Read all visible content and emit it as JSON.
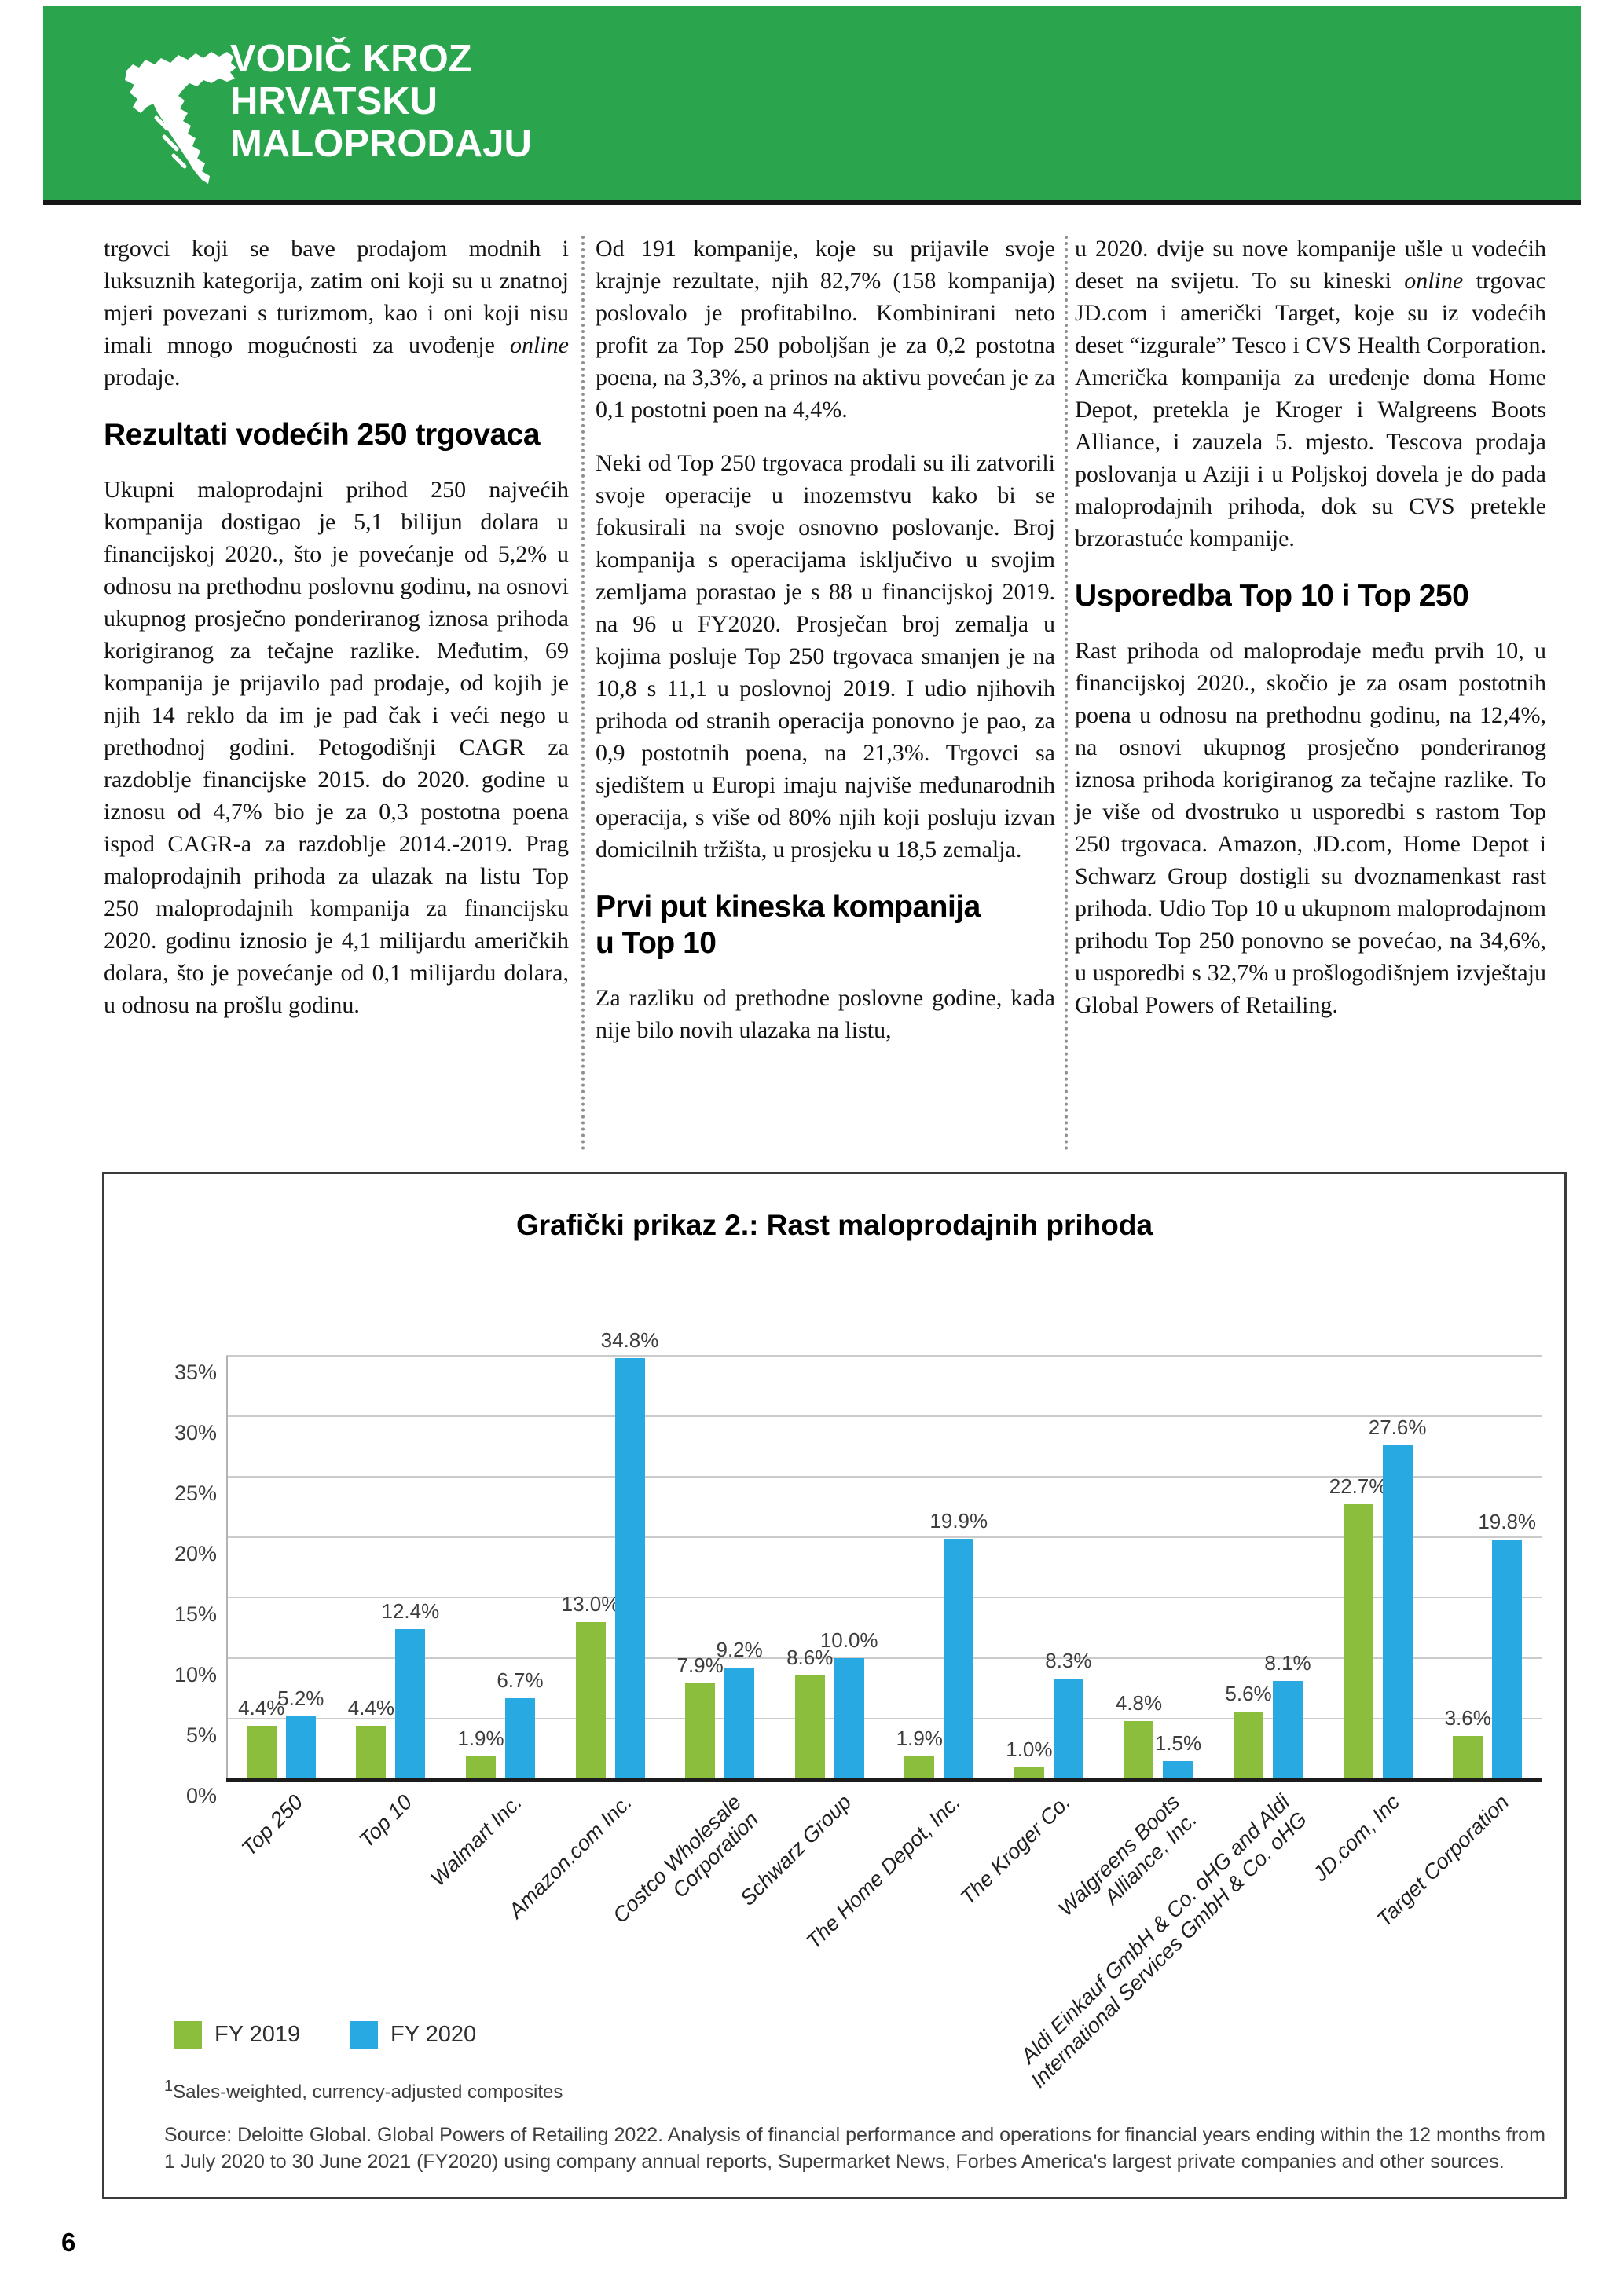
{
  "page": {
    "number": "6"
  },
  "header": {
    "title": "VODIČ KROZ\nHRVATSKU\nMALOPRODAJU",
    "bg_color": "#2aa44d"
  },
  "article": {
    "col1": {
      "p1_pre": "trgovci koji se bave prodajom modnih i luksuznih kategorija, zatim oni koji su u znatnoj mjeri povezani s turizmom, kao i oni koji nisu imali mnogo mogućnosti za uvođenje ",
      "p1_italic": "online",
      "p1_post": " prodaje.",
      "heading": "Rezultati vodećih 250 trgovaca",
      "p2": "Ukupni maloprodajni prihod 250 najvećih kompanija dostigao je 5,1 bilijun dolara u financijskoj 2020., što je povećanje od 5,2% u odnosu na prethodnu poslovnu godinu, na osnovi ukupnog prosječno ponderiranog iznosa prihoda korigiranog za tečajne razlike. Međutim, 69 kompanija je prijavilo pad prodaje, od kojih je njih 14 reklo da im je pad čak i veći nego u prethodnoj godini. Petogodišnji CAGR za razdoblje financijske 2015. do 2020. godine u iznosu od 4,7% bio je za 0,3 postotna poena ispod CAGR-a za razdoblje 2014.-2019. Prag maloprodajnih prihoda za ulazak na listu Top 250 maloprodajnih kompanija za financijsku 2020. godinu iznosio je 4,1 milijardu američkih dolara, što je povećanje od 0,1 milijardu dolara, u odnosu na prošlu godinu."
    },
    "col2": {
      "p1": "Od 191 kompanije, koje su prijavile svoje krajnje rezultate, njih 82,7% (158 kompanija) poslovalo je profitabilno. Kombinirani neto profit za Top 250 poboljšan je za 0,2 postotna poena, na 3,3%, a prinos na aktivu povećan je za 0,1 postotni poen na 4,4%.",
      "p2": "Neki od Top 250 trgovaca prodali su ili zatvorili svoje operacije u inozemstvu kako bi se fokusirali na svoje osnovno poslovanje. Broj kompanija s operacijama isključivo u svojim zemljama porastao je s 88 u financijskoj 2019. na 96 u FY2020. Prosječan broj zemalja u kojima posluje Top 250 trgovaca smanjen je na 10,8 s 11,1 u poslovnoj 2019. I udio njihovih prihoda od stranih operacija ponovno je pao, za 0,9 postotnih poena, na 21,3%. Trgovci sa sjedištem u Europi imaju najviše međunarodnih operacija, s više od 80% njih koji posluju izvan domicilnih tržišta, u prosjeku u 18,5 zemalja.",
      "heading": "Prvi put kineska kompanija\nu Top 10",
      "p3": "Za razliku od prethodne poslovne godine, kada nije bilo novih ulazaka na listu,"
    },
    "col3": {
      "p1_pre": "u 2020. dvije su nove kompanije ušle u vodećih deset na svijetu. To su kineski ",
      "p1_italic": "online",
      "p1_post": " trgovac JD.com i američki Target, koje su iz vodećih deset “izgurale” Tesco i CVS Health Corporation. Američka kompanija za uređenje doma Home Depot, pretekla je Kroger i Walgreens Boots Alliance, i zauzela 5. mjesto. Tescova prodaja poslovanja u Aziji i u Poljskoj dovela je do pada maloprodajnih prihoda, dok su CVS pretekle brzorastuće kompanije.",
      "heading": "Usporedba Top 10 i Top 250",
      "p2": "Rast prihoda od maloprodaje među prvih 10, u financijskoj 2020., skočio je za osam postotnih poena u odnosu na prethodnu godinu, na 12,4%, na osnovi ukupnog prosječno ponderiranog iznosa prihoda korigiranog za tečajne razlike. To je više od dvostruko u usporedbi s rastom Top 250 trgovaca. Amazon, JD.com, Home Depot i Schwarz Group dostigli su dvoznamenkast rast prihoda. Udio Top 10 u ukupnom maloprodajnom prihodu Top 250 ponovno se povećao, na 34,6%, u usporedbi s 32,7% u prošlogodišnjem izvještaju Global Powers of Retailing."
    }
  },
  "chart": {
    "footnote_sup": "1",
    "footnote_text": "Sales-weighted, currency-adjusted composites",
    "source": "Source: Deloitte Global. Global Powers of Retailing 2022. Analysis of financial performance and operations for financial years ending within the 12 months from 1 July 2020 to 30 June 2021 (FY2020) using company annual reports, Supermarket News, Forbes America's largest private companies and other sources."
  },
  "chart_data": {
    "type": "bar",
    "title": "Grafički prikaz 2.: Rast maloprodajnih prihoda",
    "categories": [
      "Top 250",
      "Top 10",
      "Walmart Inc.",
      "Amazon.com Inc.",
      "Costco Wholesale\nCorporation",
      "Schwarz Group",
      "The Home Depot, Inc.",
      "The Kroger Co.",
      "Walgreens Boots\nAlliance, Inc.",
      "Aldi Einkauf GmbH & Co. oHG and Aldi\nInternational Services GmbH & Co. oHG",
      "JD.com, Inc",
      "Target Corporation"
    ],
    "series": [
      {
        "name": "FY 2019",
        "color": "#8cbe3e",
        "values": [
          4.4,
          4.4,
          1.9,
          13.0,
          7.9,
          8.6,
          1.9,
          1.0,
          4.8,
          5.6,
          22.7,
          3.6
        ]
      },
      {
        "name": "FY 2020",
        "color": "#29a9e1",
        "values": [
          5.2,
          12.4,
          6.7,
          34.8,
          9.2,
          10.0,
          19.9,
          8.3,
          1.5,
          8.1,
          27.6,
          19.8
        ]
      }
    ],
    "xlabel": "",
    "ylabel": "",
    "ylim": [
      0,
      35
    ],
    "ytick_step": 5,
    "ytick_suffix": "%",
    "grid": true,
    "legend_position": "bottom-left"
  }
}
